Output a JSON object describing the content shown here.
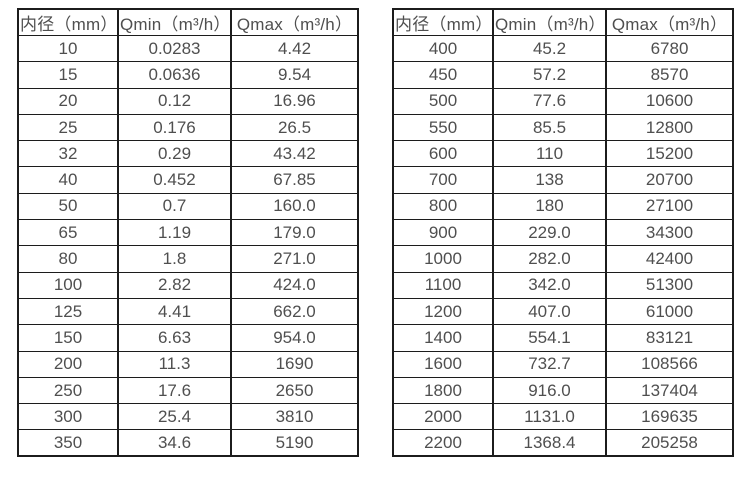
{
  "page": {
    "background": "#ffffff",
    "border_color": "#1c1c1c",
    "text_color": "#4f4f4f"
  },
  "tables": [
    {
      "title": "flow-rate-table-small-diameters",
      "headers": [
        "内径（mm）",
        "Qmin（m³/h）",
        "Qmax（m³/h）"
      ],
      "rows": [
        [
          "10",
          "0.0283",
          "4.42"
        ],
        [
          "15",
          "0.0636",
          "9.54"
        ],
        [
          "20",
          "0.12",
          "16.96"
        ],
        [
          "25",
          "0.176",
          "26.5"
        ],
        [
          "32",
          "0.29",
          "43.42"
        ],
        [
          "40",
          "0.452",
          "67.85"
        ],
        [
          "50",
          "0.7",
          "160.0"
        ],
        [
          "65",
          "1.19",
          "179.0"
        ],
        [
          "80",
          "1.8",
          "271.0"
        ],
        [
          "100",
          "2.82",
          "424.0"
        ],
        [
          "125",
          "4.41",
          "662.0"
        ],
        [
          "150",
          "6.63",
          "954.0"
        ],
        [
          "200",
          "11.3",
          "1690"
        ],
        [
          "250",
          "17.6",
          "2650"
        ],
        [
          "300",
          "25.4",
          "3810"
        ],
        [
          "350",
          "34.6",
          "5190"
        ]
      ]
    },
    {
      "title": "flow-rate-table-large-diameters",
      "headers": [
        "内径（mm）",
        "Qmin（m³/h）",
        "Qmax（m³/h）"
      ],
      "rows": [
        [
          "400",
          "45.2",
          "6780"
        ],
        [
          "450",
          "57.2",
          "8570"
        ],
        [
          "500",
          "77.6",
          "10600"
        ],
        [
          "550",
          "85.5",
          "12800"
        ],
        [
          "600",
          "110",
          "15200"
        ],
        [
          "700",
          "138",
          "20700"
        ],
        [
          "800",
          "180",
          "27100"
        ],
        [
          "900",
          "229.0",
          "34300"
        ],
        [
          "1000",
          "282.0",
          "42400"
        ],
        [
          "1100",
          "342.0",
          "51300"
        ],
        [
          "1200",
          "407.0",
          "61000"
        ],
        [
          "1400",
          "554.1",
          "83121"
        ],
        [
          "1600",
          "732.7",
          "108566"
        ],
        [
          "1800",
          "916.0",
          "137404"
        ],
        [
          "2000",
          "1131.0",
          "169635"
        ],
        [
          "2200",
          "1368.4",
          "205258"
        ]
      ]
    }
  ]
}
